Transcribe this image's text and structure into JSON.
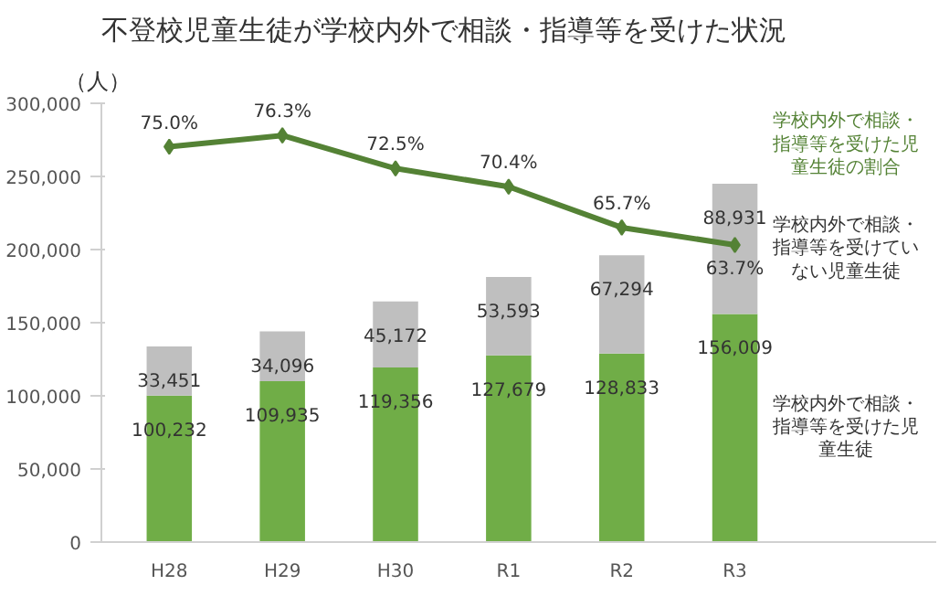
{
  "chart_data": {
    "type": "bar",
    "stacked": true,
    "title": "不登校児童生徒が学校内外で相談・指導等を受けた状況",
    "ylabel": "（人）",
    "categories": [
      "H28",
      "H29",
      "H30",
      "R1",
      "R2",
      "R3"
    ],
    "ylim": [
      0,
      300000
    ],
    "yticks": [
      {
        "value": 0,
        "label": "0"
      },
      {
        "value": 50000,
        "label": "50,000"
      },
      {
        "value": 100000,
        "label": "100,000"
      },
      {
        "value": 150000,
        "label": "150,000"
      },
      {
        "value": 200000,
        "label": "200,000"
      },
      {
        "value": 250000,
        "label": "250,000"
      },
      {
        "value": 300000,
        "label": "300,000"
      }
    ],
    "y2lim": [
      29.5,
      80
    ],
    "grid": false,
    "legend": false,
    "data_labels": true,
    "series": [
      {
        "name": "学校内外で相談・指導等を受けた児童生徒",
        "color": "#70ad47",
        "values": [
          100232,
          109935,
          119356,
          127679,
          128833,
          156009
        ],
        "value_labels": [
          "100,232",
          "109,935",
          "119,356",
          "127,679",
          "128,833",
          "156,009"
        ]
      },
      {
        "name": "学校内外で相談・指導等を受けていない児童生徒",
        "color": "#bfbfbf",
        "values": [
          33451,
          34096,
          45172,
          53593,
          67294,
          88931
        ],
        "value_labels": [
          "33,451",
          "34,096",
          "45,172",
          "53,593",
          "67,294",
          "88,931"
        ]
      },
      {
        "name": "学校内外で相談・指導等を受けた児童生徒の割合",
        "type": "line",
        "axis": "y2",
        "color": "#548235",
        "marker": "diamond",
        "values": [
          75.0,
          76.3,
          72.5,
          70.4,
          65.7,
          63.7
        ],
        "value_labels": [
          "75.0%",
          "76.3%",
          "72.5%",
          "70.4%",
          "65.7%",
          "63.7%"
        ]
      }
    ]
  }
}
